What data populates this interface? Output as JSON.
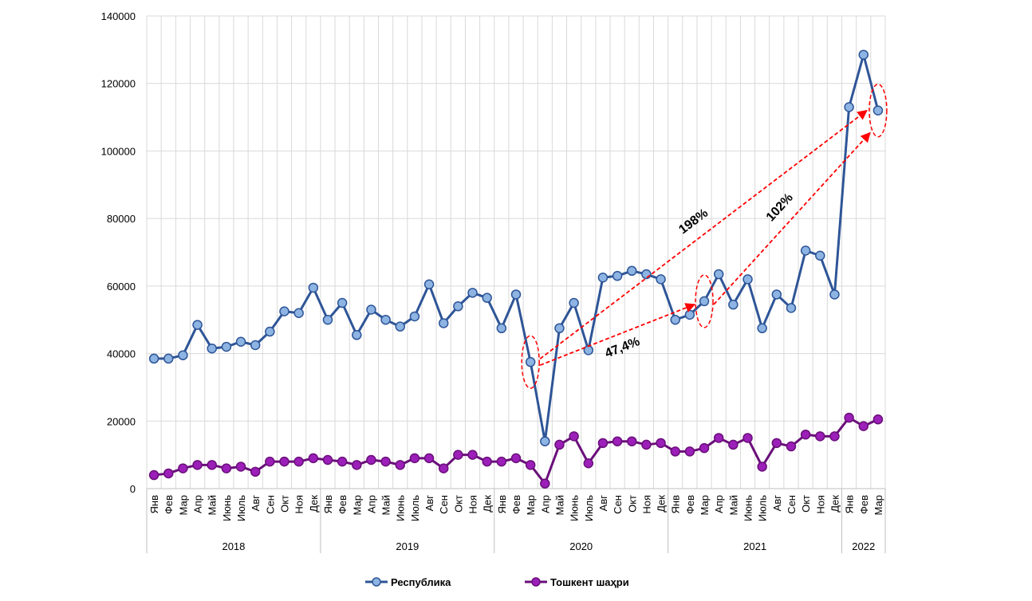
{
  "chart_data": {
    "type": "line",
    "title": "",
    "xlabel": "",
    "ylabel": "",
    "ylim": [
      0,
      140000
    ],
    "yticks": [
      0,
      20000,
      40000,
      60000,
      80000,
      100000,
      120000,
      140000
    ],
    "ytick_labels": [
      "0",
      "20000",
      "40000",
      "60000",
      "80000",
      "100000",
      "120000",
      "140000"
    ],
    "grid": true,
    "legend_position": "bottom",
    "months": [
      "Янв",
      "Фев",
      "Мар",
      "Апр",
      "Май",
      "Июнь",
      "Июль",
      "Авг",
      "Сен",
      "Окт",
      "Ноя",
      "Дек",
      "Янв",
      "Фев",
      "Мар",
      "Апр",
      "Май",
      "Июнь",
      "Июль",
      "Авг",
      "Сен",
      "Окт",
      "Ноя",
      "Дек",
      "Янв",
      "Фев",
      "Мар",
      "Апр",
      "Май",
      "Июнь",
      "Июль",
      "Авг",
      "Сен",
      "Окт",
      "Ноя",
      "Дек",
      "Янв",
      "Фев",
      "Мар",
      "Апр",
      "Май",
      "Июнь",
      "Июль",
      "Авг",
      "Сен",
      "Окт",
      "Ноя",
      "Дек",
      "Янв",
      "Фев",
      "Мар"
    ],
    "years": [
      {
        "label": "2018",
        "count": 12
      },
      {
        "label": "2019",
        "count": 12
      },
      {
        "label": "2020",
        "count": 12
      },
      {
        "label": "2021",
        "count": 12
      },
      {
        "label": "2022",
        "count": 3
      }
    ],
    "series": [
      {
        "name": "Республика",
        "color": "#2e5597",
        "marker_fill": "#8db4e2",
        "values": [
          38500,
          38500,
          39500,
          48500,
          41500,
          42000,
          43500,
          42500,
          46500,
          52500,
          52000,
          59500,
          50000,
          55000,
          45500,
          53000,
          50000,
          48000,
          51000,
          60500,
          49000,
          54000,
          58000,
          56500,
          47500,
          57500,
          37500,
          14000,
          47500,
          55000,
          41000,
          62500,
          63000,
          64500,
          63500,
          62000,
          50000,
          51500,
          55500,
          63500,
          54500,
          62000,
          47500,
          57500,
          53500,
          70500,
          69000,
          57500,
          113000,
          128500,
          112000
        ]
      },
      {
        "name": "Тошкент шаҳри",
        "color": "#6a0f7a",
        "marker_fill": "#9b1fb8",
        "values": [
          4000,
          4500,
          6000,
          7000,
          7000,
          6000,
          6500,
          5000,
          8000,
          8000,
          8000,
          9000,
          8500,
          8000,
          7000,
          8500,
          8000,
          7000,
          9000,
          9000,
          6000,
          10000,
          10000,
          8000,
          8000,
          9000,
          7000,
          1500,
          13000,
          15500,
          7500,
          13500,
          14000,
          14000,
          13000,
          13500,
          11000,
          11000,
          12000,
          15000,
          13000,
          15000,
          6500,
          13500,
          12500,
          16000,
          15500,
          15500,
          21000,
          18500,
          20500
        ]
      }
    ],
    "annotations": [
      {
        "text": "198%",
        "from_index": 26,
        "to_index": 50
      },
      {
        "text": "102%",
        "from_index": 38,
        "to_index": 50
      },
      {
        "text": "47,4%",
        "from_index": 26,
        "to_index": 38
      }
    ],
    "highlighted_indices": [
      26,
      38,
      50
    ]
  }
}
